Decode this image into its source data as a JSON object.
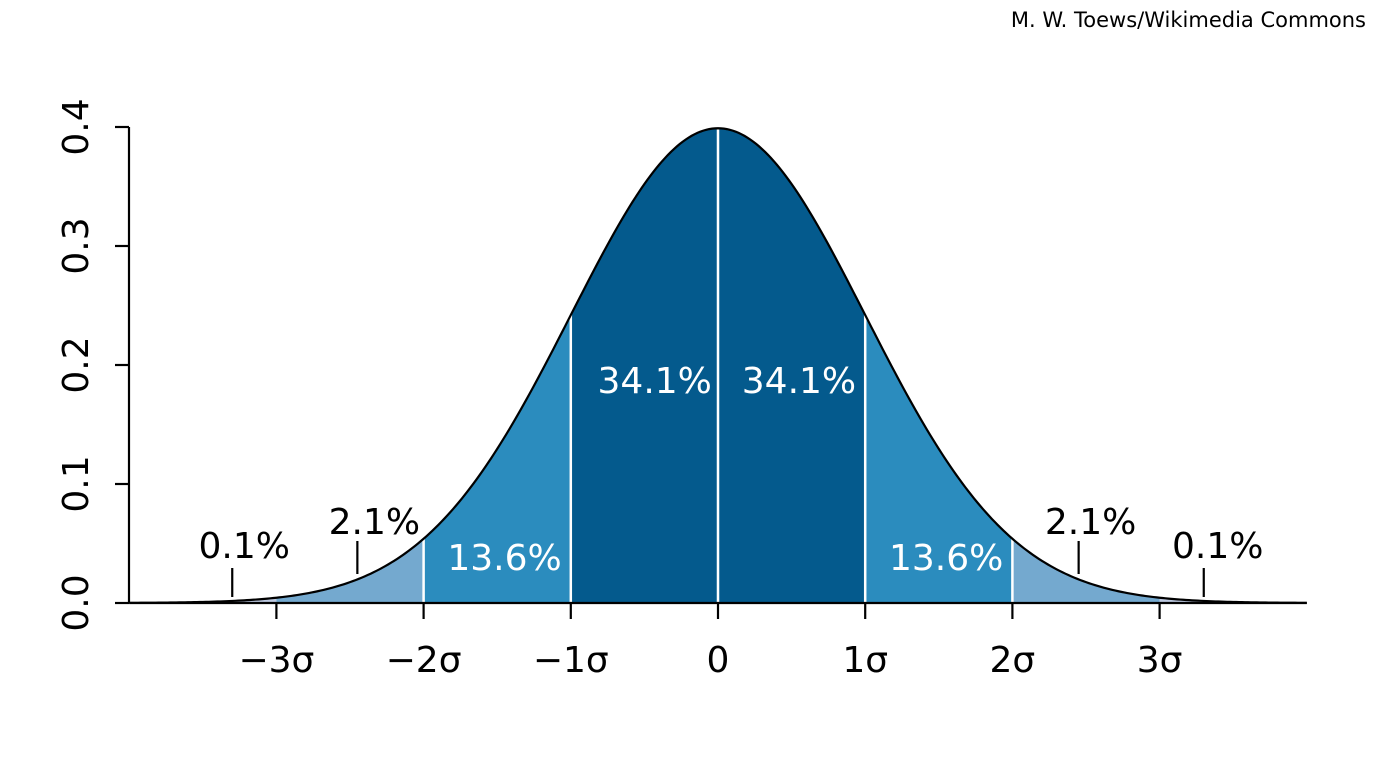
{
  "credit": "M. W. Toews/Wikimedia Commons",
  "chart_data": {
    "type": "area",
    "title": "",
    "xlabel": "",
    "ylabel": "",
    "distribution": "standard normal",
    "xlim": [
      -4,
      4
    ],
    "ylim": [
      0,
      0.4
    ],
    "x_ticks": [
      -3,
      -2,
      -1,
      0,
      1,
      2,
      3
    ],
    "x_tick_labels": [
      "−3σ",
      "−2σ",
      "−1σ",
      "0",
      "1σ",
      "2σ",
      "3σ"
    ],
    "y_ticks": [
      0.0,
      0.1,
      0.2,
      0.3,
      0.4
    ],
    "y_tick_labels": [
      "0.0",
      "0.1",
      "0.2",
      "0.3",
      "0.4"
    ],
    "regions": [
      {
        "from": -3,
        "to": -2,
        "percent": "2.1%",
        "color": "#74a9cf"
      },
      {
        "from": -2,
        "to": -1,
        "percent": "13.6%",
        "color": "#2b8cbe"
      },
      {
        "from": -1,
        "to": 0,
        "percent": "34.1%",
        "color": "#045a8d"
      },
      {
        "from": 0,
        "to": 1,
        "percent": "34.1%",
        "color": "#045a8d"
      },
      {
        "from": 1,
        "to": 2,
        "percent": "13.6%",
        "color": "#2b8cbe"
      },
      {
        "from": 2,
        "to": 3,
        "percent": "2.1%",
        "color": "#74a9cf"
      }
    ],
    "outer_regions": [
      {
        "from": -4,
        "to": -3,
        "percent": "0.1%",
        "color": "#bdc9e1"
      },
      {
        "from": 3,
        "to": 4,
        "percent": "0.1%",
        "color": "#bdc9e1"
      }
    ],
    "annotations": [
      {
        "text": "0.1%",
        "x": -3.3
      },
      {
        "text": "2.1%",
        "x": -2.45
      },
      {
        "text": "2.1%",
        "x": 2.45
      },
      {
        "text": "0.1%",
        "x": 3.3
      }
    ],
    "colors": {
      "curve": "#000000",
      "divider": "#ffffff",
      "inner_label": "#ffffff",
      "outer_label": "#000000"
    }
  }
}
